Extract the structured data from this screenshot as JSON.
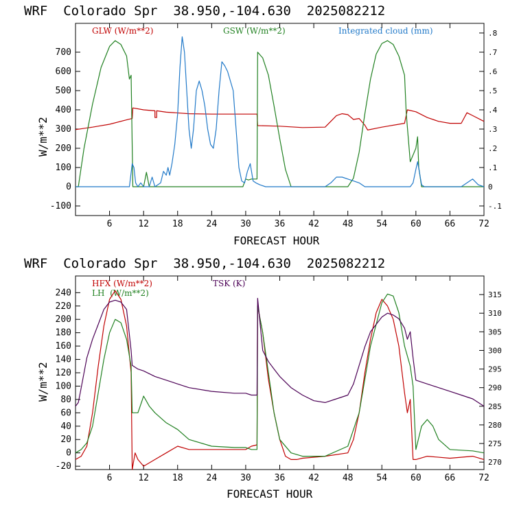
{
  "chart_data": [
    {
      "type": "line",
      "title": "WRF  Colorado Spr  38.950,-104.630  2025082212",
      "xlabel": "FORECAST HOUR",
      "ylabel": "W/m**2",
      "xlim": [
        0,
        72
      ],
      "ylim": [
        -150,
        850
      ],
      "y2lim": [
        -0.15,
        0.85
      ],
      "xticks": [
        6,
        12,
        18,
        24,
        30,
        36,
        42,
        48,
        54,
        60,
        66,
        72
      ],
      "yticks": [
        -100,
        0,
        100,
        200,
        300,
        400,
        500,
        600,
        700
      ],
      "y2ticks": [
        -0.1,
        0,
        0.1,
        0.2,
        0.3,
        0.4,
        0.5,
        0.6,
        0.7,
        0.8
      ],
      "y2ticklabels": [
        "-.1",
        "0",
        ".1",
        ".2",
        ".3",
        ".4",
        ".5",
        ".6",
        ".7",
        ".8"
      ],
      "series": [
        {
          "name": "GLW (W/m**2)",
          "color": "#c00000",
          "axis": "left",
          "x": [
            0,
            3,
            6,
            9,
            10,
            10.1,
            12,
            14,
            14,
            14.3,
            14.3,
            16,
            20,
            24,
            28,
            32,
            32.1,
            36,
            40,
            44,
            46,
            47,
            48,
            49,
            50,
            51,
            51.5,
            54,
            57,
            58,
            58.5,
            60,
            62,
            64,
            66,
            68,
            69,
            70,
            72
          ],
          "y": [
            297,
            310,
            325,
            348,
            355,
            410,
            400,
            395,
            360,
            360,
            395,
            388,
            380,
            378,
            378,
            378,
            318,
            315,
            308,
            310,
            370,
            380,
            375,
            350,
            355,
            320,
            295,
            310,
            325,
            330,
            400,
            390,
            360,
            340,
            330,
            330,
            385,
            370,
            340
          ]
        },
        {
          "name": "GSW (W/m**2)",
          "color": "#208020",
          "axis": "left",
          "x": [
            0,
            0.5,
            1.5,
            3,
            4.5,
            6,
            7,
            8,
            9,
            9.5,
            9.8,
            10.1,
            10.3,
            11,
            12,
            12.5,
            13,
            14,
            15,
            16,
            18,
            24,
            28,
            29.5,
            30,
            30.5,
            31,
            32,
            32.1,
            33,
            34,
            35,
            36,
            37,
            38,
            39,
            48,
            49,
            50,
            51,
            52,
            53,
            54,
            55,
            56,
            57,
            58,
            58.3,
            59,
            60,
            60.3,
            60.5,
            61,
            72
          ],
          "y": [
            0,
            0,
            200,
            430,
            620,
            730,
            760,
            740,
            680,
            560,
            580,
            0,
            0,
            0,
            0,
            75,
            0,
            0,
            0,
            0,
            0,
            0,
            0,
            0,
            40,
            35,
            40,
            40,
            700,
            670,
            580,
            420,
            250,
            90,
            0,
            0,
            0,
            45,
            180,
            380,
            560,
            690,
            745,
            760,
            740,
            680,
            580,
            380,
            130,
            200,
            260,
            100,
            0,
            0
          ]
        },
        {
          "name": "Integrated cloud (mm)",
          "color": "#1f78c8",
          "axis": "right",
          "x": [
            0,
            9.5,
            10,
            10.3,
            10.6,
            11,
            11.5,
            12,
            13,
            13.5,
            14,
            15,
            15.5,
            16,
            16.3,
            16.6,
            17,
            17.5,
            18,
            18.4,
            18.8,
            19.2,
            19.6,
            20,
            20.4,
            20.8,
            21.3,
            21.8,
            22.3,
            22.8,
            23.3,
            23.8,
            24.3,
            24.8,
            25.3,
            25.8,
            26.3,
            26.8,
            27.3,
            27.8,
            28.3,
            28.8,
            29.3,
            29.8,
            30.3,
            30.8,
            31.3,
            31.8,
            32.5,
            33.5,
            44,
            45,
            46,
            47,
            48,
            49,
            50,
            51,
            57,
            59,
            59.5,
            60,
            60.3,
            60.6,
            61,
            61.5,
            63,
            66,
            68,
            69,
            70,
            71,
            72
          ],
          "y": [
            0,
            0,
            0.12,
            0.1,
            0.02,
            0,
            0.02,
            0,
            0,
            0.05,
            0,
            0.02,
            0.08,
            0.06,
            0.1,
            0.06,
            0.12,
            0.22,
            0.38,
            0.62,
            0.78,
            0.7,
            0.5,
            0.3,
            0.2,
            0.3,
            0.5,
            0.55,
            0.5,
            0.42,
            0.3,
            0.22,
            0.2,
            0.3,
            0.5,
            0.65,
            0.63,
            0.6,
            0.55,
            0.5,
            0.3,
            0.1,
            0.03,
            0.02,
            0.08,
            0.12,
            0.03,
            0.02,
            0.01,
            0,
            0,
            0.02,
            0.05,
            0.05,
            0.04,
            0.03,
            0.02,
            0,
            0,
            0,
            0.02,
            0.09,
            0.13,
            0.08,
            0.01,
            0,
            0,
            0,
            0,
            0.02,
            0.04,
            0.01,
            0
          ]
        }
      ]
    },
    {
      "type": "line",
      "title": "WRF  Colorado Spr  38.950,-104.630  2025082212",
      "xlabel": "FORECAST HOUR",
      "ylabel": "W/m**2",
      "xlim": [
        0,
        72
      ],
      "ylim": [
        -25,
        265
      ],
      "y2lim": [
        268,
        320
      ],
      "xticks": [
        6,
        12,
        18,
        24,
        30,
        36,
        42,
        48,
        54,
        60,
        66,
        72
      ],
      "yticks": [
        -20,
        0,
        20,
        40,
        60,
        80,
        100,
        120,
        140,
        160,
        180,
        200,
        220,
        240
      ],
      "y2ticks": [
        270,
        275,
        280,
        285,
        290,
        295,
        300,
        305,
        310,
        315
      ],
      "series": [
        {
          "name": "HFX (W/m**2)",
          "color": "#c00000",
          "axis": "left",
          "x": [
            0,
            1,
            2,
            3,
            4,
            5,
            6,
            7,
            8,
            9,
            9.8,
            10,
            10.5,
            11,
            12,
            14,
            16,
            18,
            20,
            24,
            28,
            30,
            31,
            32,
            32.1,
            33,
            34,
            35,
            36,
            37,
            38,
            39,
            40,
            44,
            48,
            49,
            50,
            51,
            52,
            53,
            54,
            55,
            56,
            57,
            58,
            58.5,
            59,
            59.5,
            60,
            62,
            66,
            70,
            72
          ],
          "y": [
            -10,
            -5,
            10,
            60,
            130,
            190,
            230,
            243,
            230,
            190,
            120,
            -25,
            0,
            -10,
            -20,
            -10,
            0,
            10,
            5,
            5,
            5,
            5,
            10,
            12,
            220,
            180,
            110,
            60,
            20,
            -5,
            -10,
            -10,
            -8,
            -5,
            0,
            20,
            60,
            120,
            170,
            210,
            230,
            220,
            200,
            160,
            90,
            60,
            80,
            -10,
            -10,
            -5,
            -8,
            -5,
            -10
          ]
        },
        {
          "name": "LH  (W/m**2)",
          "color": "#208020",
          "axis": "left",
          "x": [
            0,
            1,
            2,
            3,
            4,
            5,
            6,
            7,
            8,
            9,
            9.8,
            10,
            11,
            12,
            13,
            14,
            16,
            18,
            20,
            24,
            28,
            30,
            31,
            32,
            32.1,
            33,
            34,
            35,
            36,
            38,
            40,
            44,
            48,
            50,
            52,
            54,
            55,
            56,
            57,
            58,
            59,
            59.5,
            60,
            61,
            62,
            63,
            64,
            66,
            70,
            72
          ],
          "y": [
            0,
            5,
            15,
            40,
            90,
            140,
            180,
            200,
            195,
            170,
            130,
            60,
            60,
            85,
            70,
            60,
            45,
            35,
            20,
            10,
            8,
            8,
            5,
            5,
            220,
            180,
            120,
            60,
            20,
            0,
            -5,
            -5,
            10,
            60,
            160,
            225,
            238,
            235,
            210,
            160,
            130,
            100,
            5,
            40,
            50,
            40,
            20,
            5,
            3,
            0
          ]
        },
        {
          "name": "TSK (K)",
          "color": "#4b0055",
          "axis": "right",
          "x": [
            0,
            0.5,
            1,
            2,
            3,
            4,
            5,
            6,
            7,
            8,
            9,
            9.8,
            10,
            11,
            12,
            14,
            16,
            18,
            20,
            24,
            28,
            30,
            31,
            32,
            32.1,
            33,
            34,
            35,
            36,
            38,
            40,
            42,
            44,
            46,
            48,
            49,
            50,
            51,
            52,
            53,
            54,
            55,
            56,
            57,
            58,
            58.5,
            59,
            59.5,
            60,
            62,
            64,
            66,
            68,
            70,
            72
          ],
          "y": [
            285,
            286,
            290,
            298,
            303,
            307,
            311,
            313,
            313.5,
            313,
            311,
            300,
            296,
            295,
            294.5,
            293,
            292,
            291,
            290,
            289,
            288.5,
            288.5,
            288,
            288,
            314,
            300,
            297,
            295,
            293,
            290,
            288,
            286.5,
            286,
            287,
            288,
            291,
            296,
            301,
            305,
            307,
            309,
            310,
            309.5,
            308.5,
            306,
            303,
            305,
            298,
            292,
            291,
            290,
            289,
            288,
            287,
            285
          ]
        }
      ]
    }
  ]
}
